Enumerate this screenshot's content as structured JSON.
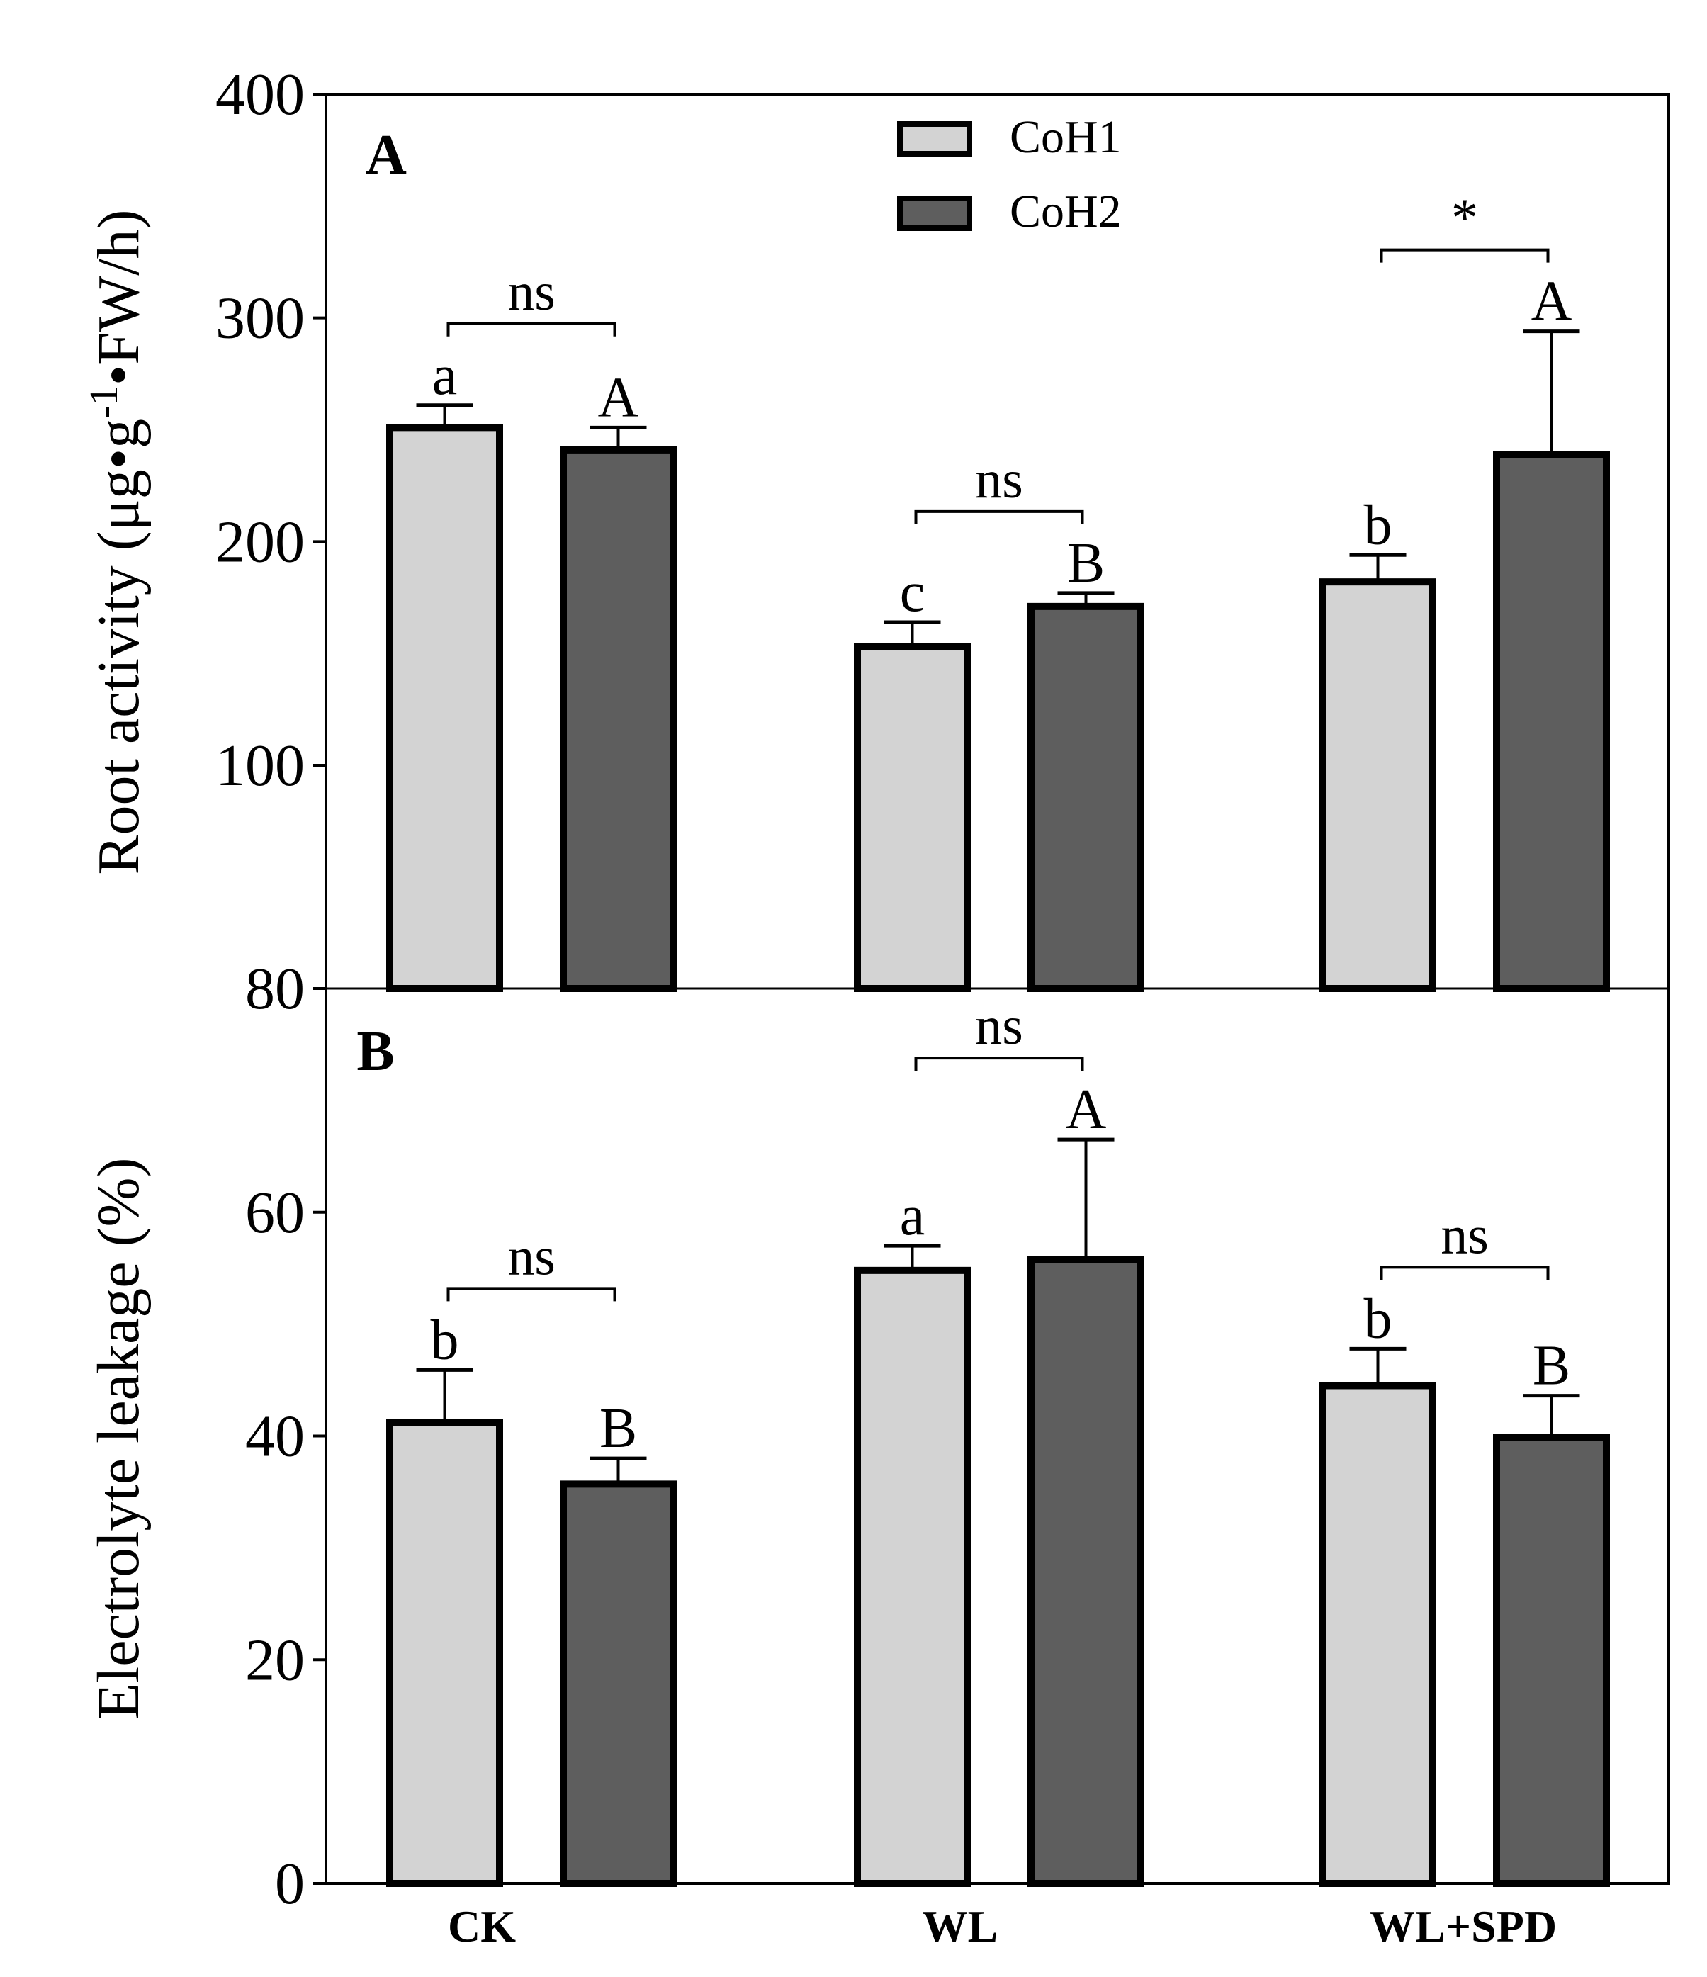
{
  "chart_data": {
    "type": "bar",
    "categories": [
      "CK",
      "WL",
      "WL+SPD"
    ],
    "legend": [
      {
        "name": "CoH1",
        "color": "#d3d3d3"
      },
      {
        "name": "CoH2",
        "color": "#5e5e5e"
      }
    ],
    "panels": [
      {
        "id": "A",
        "ylabel_main": "Root activity (μg•g",
        "ylabel_sup": "-1",
        "ylabel_tail": "•FW/h)",
        "axis_segments": [
          {
            "from": 80,
            "to": 100
          },
          {
            "from": 100,
            "to": 400
          }
        ],
        "yticks": [
          80,
          100,
          200,
          300,
          400
        ],
        "series": [
          {
            "name": "CoH1",
            "values": [
              251,
              153,
              182
            ],
            "errors": [
              10,
              11,
              12
            ]
          },
          {
            "name": "CoH2",
            "values": [
              241,
              171,
              239
            ],
            "errors": [
              10,
              6,
              55
            ]
          }
        ],
        "letters": {
          "CoH1": [
            "a",
            "c",
            "b"
          ],
          "CoH2": [
            "A",
            "B",
            "A"
          ]
        },
        "comparisons": [
          "ns",
          "ns",
          "*"
        ]
      },
      {
        "id": "B",
        "ylabel": "Electrolyte leakage (%)",
        "ylim": [
          0,
          80
        ],
        "yticks": [
          0,
          20,
          40,
          60
        ],
        "series": [
          {
            "name": "CoH1",
            "values": [
              41.2,
              54.8,
              44.5
            ],
            "errors": [
              4.7,
              2.2,
              3.3
            ]
          },
          {
            "name": "CoH2",
            "values": [
              35.7,
              55.8,
              39.9
            ],
            "errors": [
              2.3,
              10.7,
              3.7
            ]
          }
        ],
        "letters": {
          "CoH1": [
            "b",
            "a",
            "b"
          ],
          "CoH2": [
            "B",
            "A",
            "B"
          ]
        },
        "comparisons": [
          "ns",
          "ns",
          "ns"
        ]
      }
    ]
  }
}
